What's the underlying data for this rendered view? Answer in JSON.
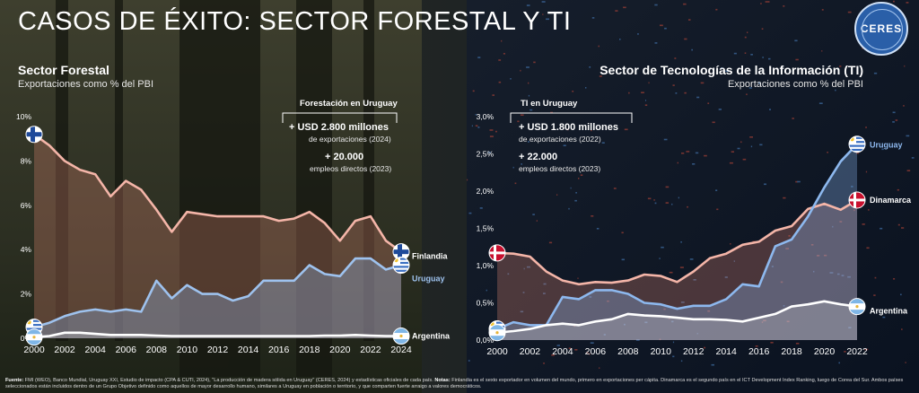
{
  "page_title": "CASOS DE ÉXITO: SECTOR FORESTAL Y TI",
  "logo_text": "CERES",
  "footer": {
    "fuente_label": "Fuente:",
    "fuente_text": " FMI (WEO), Banco Mundial, Uruguay XXI, Estudio de impacto (CPA & CUTI, 2024), \"La producción de madera sólida en Uruguay\" (CERES, 2024) y estadísticas oficiales de cada país.",
    "notas_label": " Notas:",
    "notas_text": " Finlandia es el sexto exportador en volumen del mundo, primero en exportaciones per cápita. Dinamarca es el segundo país en el ICT Development Index Ranking, luego de Corea del Sur. Ambos países seleccionados están incluidos dentro de un Grupo Objetivo definido como aquellos de mayor desarrollo humano, similares a Uruguay en población o territorio, y que comparten fuerte arraigo a valores democráticos."
  },
  "colors": {
    "finlandia": "#f2b2a6",
    "uruguay": "#9ec2ee",
    "argentina": "#ffffff",
    "dinamarca": "#f2b2a6",
    "uruguay_ti": "#8db8ee"
  },
  "chart_data": [
    {
      "type": "area",
      "title": "Sector Forestal",
      "subtitle": "Exportaciones como % del PBI",
      "x": [
        2000,
        2001,
        2002,
        2003,
        2004,
        2005,
        2006,
        2007,
        2008,
        2009,
        2010,
        2011,
        2012,
        2013,
        2014,
        2015,
        2016,
        2017,
        2018,
        2019,
        2020,
        2021,
        2022,
        2023,
        2024
      ],
      "xticks": [
        "2000",
        "2002",
        "2004",
        "2006",
        "2008",
        "2010",
        "2012",
        "2014",
        "2016",
        "2018",
        "2020",
        "2022",
        "2024"
      ],
      "ylim": [
        0,
        10
      ],
      "yticks": [
        "0%",
        "2%",
        "4%",
        "6%",
        "8%",
        "10%"
      ],
      "series": [
        {
          "name": "Finlandia",
          "values": [
            9.2,
            8.7,
            8.0,
            7.6,
            7.4,
            6.4,
            7.1,
            6.7,
            5.8,
            4.8,
            5.7,
            5.6,
            5.5,
            5.5,
            5.5,
            5.5,
            5.3,
            5.4,
            5.7,
            5.2,
            4.4,
            5.3,
            5.5,
            4.4,
            3.9
          ]
        },
        {
          "name": "Uruguay",
          "values": [
            0.5,
            0.7,
            1.0,
            1.2,
            1.3,
            1.2,
            1.3,
            1.2,
            2.6,
            1.8,
            2.4,
            2.0,
            2.0,
            1.7,
            1.9,
            2.6,
            2.6,
            2.6,
            3.3,
            2.9,
            2.8,
            3.6,
            3.6,
            3.1,
            3.3
          ]
        },
        {
          "name": "Argentina",
          "values": [
            0.05,
            0.1,
            0.25,
            0.25,
            0.2,
            0.15,
            0.15,
            0.15,
            0.12,
            0.1,
            0.1,
            0.1,
            0.1,
            0.1,
            0.1,
            0.1,
            0.1,
            0.1,
            0.1,
            0.12,
            0.12,
            0.15,
            0.12,
            0.1,
            0.1
          ]
        }
      ],
      "box": {
        "heading": "Forestación en Uruguay",
        "line1_big": "+ USD 2.800 millones",
        "line1_small": "de exportaciones (2024)",
        "line2_big": "+ 20.000",
        "line2_small": "empleos directos (2023)"
      }
    },
    {
      "type": "area",
      "title": "Sector de Tecnologías de la Información (TI)",
      "subtitle": "Exportaciones como % del PBI",
      "x": [
        2000,
        2001,
        2002,
        2003,
        2004,
        2005,
        2006,
        2007,
        2008,
        2009,
        2010,
        2011,
        2012,
        2013,
        2014,
        2015,
        2016,
        2017,
        2018,
        2019,
        2020,
        2021,
        2022
      ],
      "xticks": [
        "2000",
        "2002",
        "2004",
        "2006",
        "2008",
        "2010",
        "2012",
        "2014",
        "2016",
        "2018",
        "2020",
        "2022"
      ],
      "ylim": [
        0,
        3
      ],
      "yticks": [
        "0,0%",
        "0,5%",
        "1,0%",
        "1,5%",
        "2,0%",
        "2,5%",
        "3,0%"
      ],
      "series": [
        {
          "name": "Dinamarca",
          "values": [
            1.17,
            1.16,
            1.12,
            0.92,
            0.8,
            0.75,
            0.78,
            0.77,
            0.8,
            0.88,
            0.86,
            0.78,
            0.92,
            1.1,
            1.16,
            1.28,
            1.32,
            1.47,
            1.53,
            1.76,
            1.83,
            1.75,
            1.88
          ]
        },
        {
          "name": "Uruguay",
          "values": [
            0.15,
            0.24,
            0.2,
            0.2,
            0.58,
            0.55,
            0.67,
            0.67,
            0.62,
            0.5,
            0.48,
            0.42,
            0.46,
            0.46,
            0.55,
            0.75,
            0.72,
            1.26,
            1.35,
            1.66,
            2.05,
            2.4,
            2.63
          ]
        },
        {
          "name": "Argentina",
          "values": [
            0.1,
            0.12,
            0.15,
            0.2,
            0.22,
            0.2,
            0.25,
            0.28,
            0.35,
            0.33,
            0.32,
            0.3,
            0.28,
            0.28,
            0.27,
            0.25,
            0.3,
            0.35,
            0.45,
            0.48,
            0.52,
            0.48,
            0.45
          ]
        }
      ],
      "box": {
        "heading": "TI en Uruguay",
        "line1_big": "+ USD 1.800 millones",
        "line1_small": "de exportaciones (2022)",
        "line2_big": "+ 22.000",
        "line2_small": "empleos directos (2023)"
      }
    }
  ]
}
